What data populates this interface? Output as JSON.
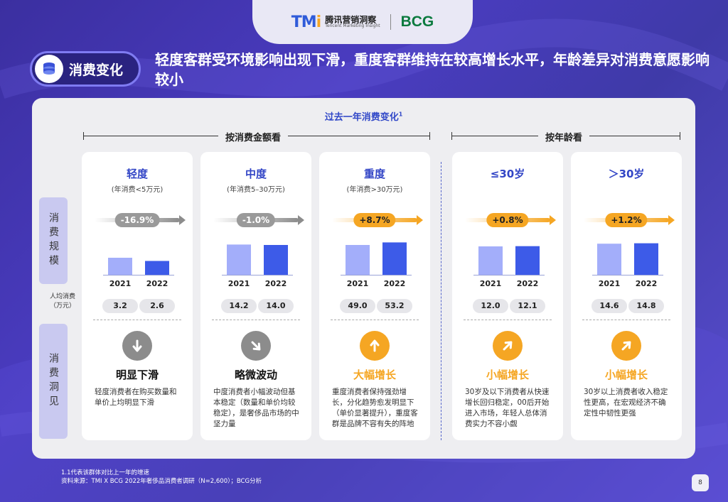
{
  "logo": {
    "tmi_mark": "TMi",
    "tmi_cn": "腾讯营销洞察",
    "tmi_en": "Tencent Marketing Insight",
    "bcg": "BCG"
  },
  "header": {
    "badge": "消费变化",
    "badge_icon": "coins-stack-icon",
    "headline": "轻度客群受环境影响出现下滑，重度客群维持在较高增长水平，年龄差异对消费意愿影响较小"
  },
  "panel": {
    "title": "过去一年消费变化",
    "title_sup": "1",
    "group_amount": "按消费金额看",
    "group_age": "按年龄看",
    "row_scale": "消费规模",
    "row_insight": "消费洞见",
    "per_capita_label_1": "人均消费",
    "per_capita_label_2": "（万元）"
  },
  "colors": {
    "bar_2021": "#a3aefa",
    "bar_2022": "#3d5be8",
    "neg": "#8c8c8c",
    "pos": "#f5a623",
    "trend_gray": "#111111",
    "trend_orange": "#f5a623"
  },
  "chart_data": {
    "type": "bar",
    "title": "过去一年消费变化",
    "x": [
      "2021",
      "2022"
    ],
    "ylabel": "人均消费（万元）",
    "groups": [
      {
        "name": "轻度",
        "subtitle": "(年消费<5万元)",
        "change": "-16.9%",
        "direction": "down",
        "values": [
          3.2,
          2.6
        ],
        "labels": [
          "3.2",
          "2.6"
        ],
        "trend": "明显下滑",
        "insight": "轻度消费者在购买数量和单价上均明显下滑"
      },
      {
        "name": "中度",
        "subtitle": "(年消费5–30万元)",
        "change": "-1.0%",
        "direction": "slight-down",
        "values": [
          14.2,
          14.0
        ],
        "labels": [
          "14.2",
          "14.0"
        ],
        "trend": "略微波动",
        "insight": "中度消费者小幅波动但基本稳定（数量和单价均较稳定），是奢侈品市场的中坚力量"
      },
      {
        "name": "重度",
        "subtitle": "(年消费>30万元)",
        "change": "+8.7%",
        "direction": "up",
        "values": [
          49.0,
          53.2
        ],
        "labels": [
          "49.0",
          "53.2"
        ],
        "trend": "大幅增长",
        "insight": "重度消费者保持强劲增长，分化趋势愈发明显下（单价显著提升），重度客群是品牌不容有失的阵地"
      },
      {
        "name": "≤30岁",
        "subtitle": "",
        "change": "+0.8%",
        "direction": "slight-up",
        "values": [
          12.0,
          12.1
        ],
        "labels": [
          "12.0",
          "12.1"
        ],
        "trend": "小幅增长",
        "insight": "30岁及以下消费者从快速增长回归稳定，00后开始进入市场，年轻人总体消费实力不容小觑"
      },
      {
        "name": "＞30岁",
        "subtitle": "",
        "change": "+1.2%",
        "direction": "slight-up",
        "values": [
          14.6,
          14.8
        ],
        "labels": [
          "14.6",
          "14.8"
        ],
        "trend": "小幅增长",
        "insight": "30岁以上消费者收入稳定性更高，在宏观经济不确定性中韧性更强"
      }
    ]
  },
  "footnote": {
    "line1": "1.1代表该群体对比上一年的增速",
    "line2": "资料来源：TMI X BCG 2022年奢侈品消费者调研（N=2,600）；BCG分析"
  },
  "page": "8"
}
